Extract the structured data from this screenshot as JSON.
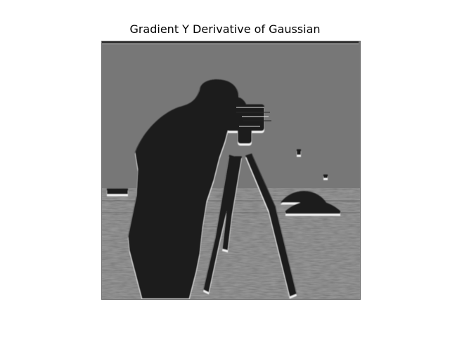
{
  "figure": {
    "title": "Gradient Y Derivative of Gaussian"
  },
  "image": {
    "subject": "cameraman photo",
    "filter": "gradient y derivative of gaussian",
    "colormap": "gray",
    "background_gray": "#777777"
  }
}
